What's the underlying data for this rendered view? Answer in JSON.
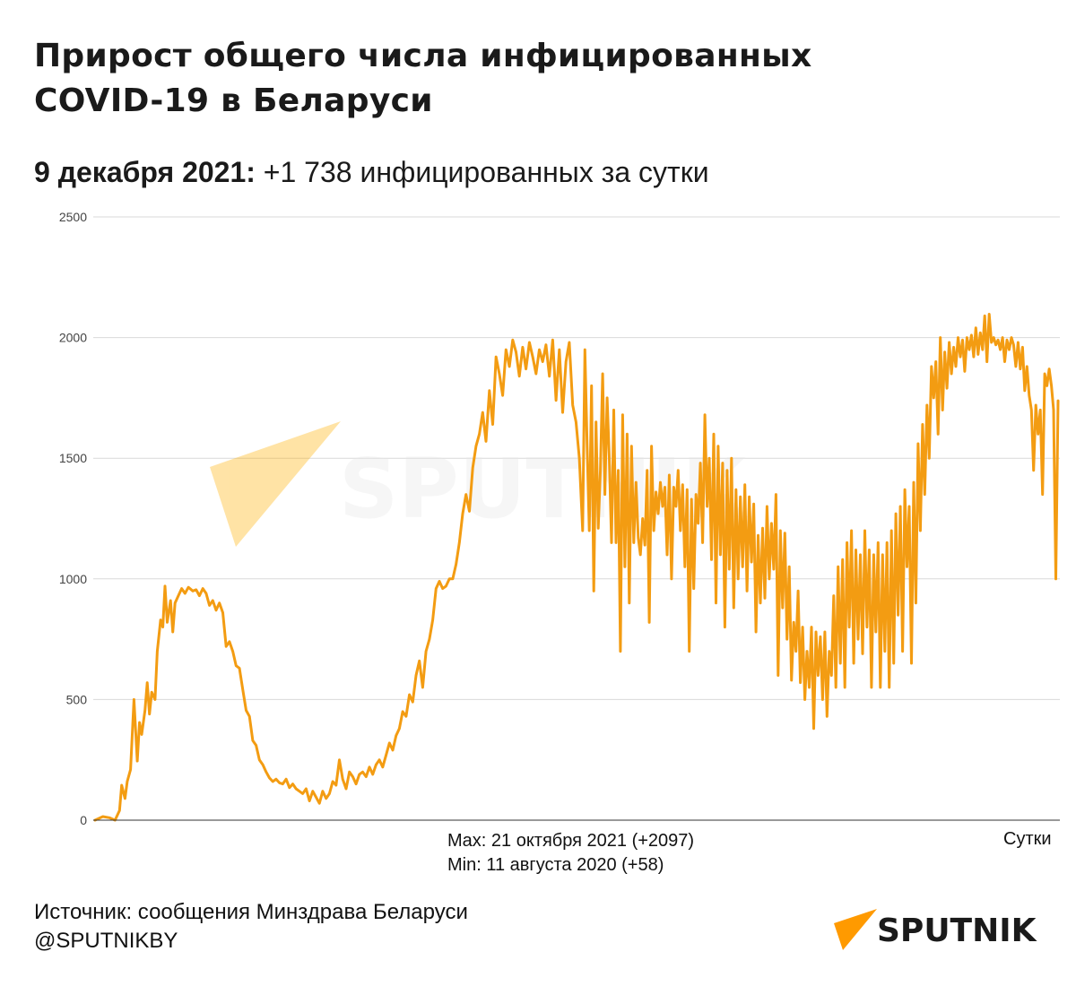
{
  "header": {
    "title_line1": "Прирост общего числа инфицированных",
    "title_line2": "COVID-19 в Беларуси",
    "subtitle_date": "9 декабря 2021:",
    "subtitle_value": " +1 738 инфицированных за сутки"
  },
  "notes": {
    "max": "Max: 21 октября 2021 (+2097)",
    "min": "Min: 11 августа 2020 (+58)"
  },
  "footer": {
    "source": "Источник: сообщения Минздрава Беларуси",
    "handle": "@SPUTNIKBY"
  },
  "brand": {
    "logo_text": "SPUTNIK",
    "watermark_text": "SPUTNIK",
    "accent": "#ff9a00"
  },
  "chart_data": {
    "type": "line",
    "title": "",
    "xlabel": "Сутки",
    "ylabel": "",
    "ylim": [
      0,
      2500
    ],
    "yticks": [
      0,
      500,
      1000,
      1500,
      2000,
      2500
    ],
    "grid": true,
    "line_color": "#f39c12",
    "series_shape": [
      [
        0,
        0
      ],
      [
        7,
        15
      ],
      [
        13,
        10
      ],
      [
        18,
        0
      ],
      [
        22,
        40
      ],
      [
        24,
        145
      ],
      [
        27,
        90
      ],
      [
        29,
        160
      ],
      [
        32,
        210
      ],
      [
        35,
        500
      ],
      [
        38,
        245
      ],
      [
        40,
        405
      ],
      [
        42,
        355
      ],
      [
        45,
        455
      ],
      [
        47,
        570
      ],
      [
        49,
        440
      ],
      [
        51,
        530
      ],
      [
        54,
        500
      ],
      [
        56,
        700
      ],
      [
        59,
        830
      ],
      [
        61,
        800
      ],
      [
        63,
        970
      ],
      [
        65,
        820
      ],
      [
        68,
        910
      ],
      [
        70,
        780
      ],
      [
        72,
        900
      ],
      [
        75,
        930
      ],
      [
        78,
        960
      ],
      [
        81,
        940
      ],
      [
        84,
        965
      ],
      [
        88,
        950
      ],
      [
        91,
        955
      ],
      [
        94,
        930
      ],
      [
        97,
        960
      ],
      [
        100,
        940
      ],
      [
        103,
        890
      ],
      [
        106,
        910
      ],
      [
        109,
        870
      ],
      [
        112,
        900
      ],
      [
        115,
        860
      ],
      [
        118,
        720
      ],
      [
        121,
        740
      ],
      [
        124,
        700
      ],
      [
        127,
        640
      ],
      [
        130,
        630
      ],
      [
        133,
        540
      ],
      [
        136,
        455
      ],
      [
        139,
        430
      ],
      [
        142,
        330
      ],
      [
        145,
        310
      ],
      [
        148,
        250
      ],
      [
        151,
        230
      ],
      [
        154,
        200
      ],
      [
        157,
        175
      ],
      [
        160,
        160
      ],
      [
        163,
        170
      ],
      [
        166,
        155
      ],
      [
        169,
        150
      ],
      [
        172,
        170
      ],
      [
        175,
        135
      ],
      [
        178,
        150
      ],
      [
        181,
        130
      ],
      [
        184,
        120
      ],
      [
        187,
        110
      ],
      [
        190,
        130
      ],
      [
        193,
        80
      ],
      [
        196,
        120
      ],
      [
        199,
        95
      ],
      [
        202,
        70
      ],
      [
        205,
        120
      ],
      [
        208,
        90
      ],
      [
        211,
        110
      ],
      [
        214,
        160
      ],
      [
        217,
        145
      ],
      [
        220,
        250
      ],
      [
        223,
        170
      ],
      [
        226,
        130
      ],
      [
        229,
        200
      ],
      [
        232,
        180
      ],
      [
        235,
        150
      ],
      [
        238,
        190
      ],
      [
        241,
        200
      ],
      [
        244,
        180
      ],
      [
        247,
        220
      ],
      [
        250,
        190
      ],
      [
        253,
        230
      ],
      [
        256,
        250
      ],
      [
        259,
        220
      ],
      [
        262,
        270
      ],
      [
        265,
        320
      ],
      [
        268,
        290
      ],
      [
        271,
        350
      ],
      [
        274,
        380
      ],
      [
        277,
        450
      ],
      [
        280,
        430
      ],
      [
        283,
        520
      ],
      [
        286,
        490
      ],
      [
        289,
        600
      ],
      [
        292,
        660
      ],
      [
        295,
        550
      ],
      [
        298,
        700
      ],
      [
        301,
        750
      ],
      [
        304,
        830
      ],
      [
        307,
        960
      ],
      [
        310,
        990
      ],
      [
        313,
        960
      ],
      [
        316,
        970
      ],
      [
        319,
        1000
      ],
      [
        322,
        1000
      ],
      [
        325,
        1060
      ],
      [
        328,
        1150
      ],
      [
        331,
        1270
      ],
      [
        334,
        1350
      ],
      [
        337,
        1280
      ],
      [
        340,
        1460
      ],
      [
        343,
        1550
      ],
      [
        346,
        1600
      ],
      [
        349,
        1690
      ],
      [
        352,
        1570
      ],
      [
        355,
        1780
      ],
      [
        358,
        1640
      ],
      [
        361,
        1920
      ],
      [
        364,
        1850
      ],
      [
        367,
        1760
      ],
      [
        370,
        1950
      ],
      [
        373,
        1880
      ],
      [
        376,
        1990
      ],
      [
        379,
        1940
      ],
      [
        382,
        1840
      ],
      [
        385,
        1960
      ],
      [
        388,
        1870
      ],
      [
        391,
        1980
      ],
      [
        394,
        1920
      ],
      [
        397,
        1850
      ],
      [
        400,
        1950
      ],
      [
        403,
        1900
      ],
      [
        406,
        1970
      ],
      [
        409,
        1840
      ],
      [
        412,
        1990
      ],
      [
        415,
        1740
      ],
      [
        418,
        1950
      ],
      [
        421,
        1690
      ],
      [
        424,
        1900
      ],
      [
        427,
        1980
      ],
      [
        430,
        1720
      ],
      [
        433,
        1650
      ],
      [
        436,
        1500
      ],
      [
        439,
        1200
      ],
      [
        441,
        1950
      ],
      [
        443,
        1550
      ],
      [
        445,
        1200
      ],
      [
        447,
        1800
      ],
      [
        449,
        950
      ],
      [
        451,
        1650
      ],
      [
        453,
        1210
      ],
      [
        455,
        1450
      ],
      [
        457,
        1850
      ],
      [
        459,
        1350
      ],
      [
        461,
        1750
      ],
      [
        463,
        1500
      ],
      [
        465,
        1150
      ],
      [
        467,
        1700
      ],
      [
        469,
        1150
      ],
      [
        471,
        1450
      ],
      [
        473,
        700
      ],
      [
        475,
        1680
      ],
      [
        477,
        1050
      ],
      [
        479,
        1600
      ],
      [
        481,
        900
      ],
      [
        483,
        1550
      ],
      [
        485,
        1150
      ],
      [
        487,
        1400
      ],
      [
        489,
        1170
      ],
      [
        491,
        1100
      ],
      [
        493,
        1250
      ],
      [
        495,
        1140
      ],
      [
        497,
        1450
      ],
      [
        499,
        820
      ],
      [
        501,
        1550
      ],
      [
        503,
        1200
      ],
      [
        505,
        1360
      ],
      [
        507,
        1270
      ],
      [
        509,
        1400
      ],
      [
        511,
        1300
      ],
      [
        513,
        1380
      ],
      [
        515,
        1100
      ],
      [
        517,
        1430
      ],
      [
        519,
        1000
      ],
      [
        521,
        1380
      ],
      [
        523,
        1300
      ],
      [
        525,
        1450
      ],
      [
        527,
        1200
      ],
      [
        529,
        1390
      ],
      [
        531,
        1050
      ],
      [
        533,
        1370
      ],
      [
        535,
        700
      ],
      [
        537,
        1330
      ],
      [
        539,
        960
      ],
      [
        541,
        1350
      ],
      [
        543,
        1230
      ],
      [
        545,
        1480
      ],
      [
        547,
        1150
      ],
      [
        549,
        1680
      ],
      [
        551,
        1300
      ],
      [
        553,
        1500
      ],
      [
        555,
        1080
      ],
      [
        557,
        1600
      ],
      [
        559,
        900
      ],
      [
        561,
        1550
      ],
      [
        563,
        1100
      ],
      [
        565,
        1480
      ],
      [
        567,
        800
      ],
      [
        569,
        1450
      ],
      [
        571,
        1040
      ],
      [
        573,
        1500
      ],
      [
        575,
        880
      ],
      [
        577,
        1370
      ],
      [
        579,
        1000
      ],
      [
        581,
        1340
      ],
      [
        583,
        1050
      ],
      [
        585,
        1390
      ],
      [
        587,
        950
      ],
      [
        589,
        1340
      ],
      [
        591,
        1070
      ],
      [
        593,
        1310
      ],
      [
        595,
        780
      ],
      [
        597,
        1180
      ],
      [
        599,
        900
      ],
      [
        601,
        1210
      ],
      [
        603,
        920
      ],
      [
        605,
        1300
      ],
      [
        607,
        1000
      ],
      [
        609,
        1230
      ],
      [
        611,
        1040
      ],
      [
        613,
        1350
      ],
      [
        615,
        600
      ],
      [
        617,
        1200
      ],
      [
        619,
        880
      ],
      [
        621,
        1190
      ],
      [
        623,
        750
      ],
      [
        625,
        1050
      ],
      [
        627,
        580
      ],
      [
        629,
        820
      ],
      [
        631,
        700
      ],
      [
        633,
        950
      ],
      [
        635,
        570
      ],
      [
        637,
        800
      ],
      [
        639,
        500
      ],
      [
        641,
        700
      ],
      [
        643,
        550
      ],
      [
        645,
        800
      ],
      [
        647,
        380
      ],
      [
        649,
        780
      ],
      [
        651,
        600
      ],
      [
        653,
        760
      ],
      [
        655,
        500
      ],
      [
        657,
        780
      ],
      [
        659,
        430
      ],
      [
        661,
        700
      ],
      [
        663,
        600
      ],
      [
        665,
        930
      ],
      [
        667,
        550
      ],
      [
        669,
        1050
      ],
      [
        671,
        650
      ],
      [
        673,
        1080
      ],
      [
        675,
        550
      ],
      [
        677,
        1150
      ],
      [
        679,
        800
      ],
      [
        681,
        1200
      ],
      [
        683,
        650
      ],
      [
        685,
        1120
      ],
      [
        687,
        750
      ],
      [
        689,
        1100
      ],
      [
        691,
        690
      ],
      [
        693,
        1200
      ],
      [
        695,
        800
      ],
      [
        697,
        1120
      ],
      [
        699,
        550
      ],
      [
        701,
        1100
      ],
      [
        703,
        780
      ],
      [
        705,
        1150
      ],
      [
        707,
        550
      ],
      [
        709,
        1100
      ],
      [
        711,
        700
      ],
      [
        713,
        1150
      ],
      [
        715,
        550
      ],
      [
        717,
        1200
      ],
      [
        719,
        650
      ],
      [
        721,
        1270
      ],
      [
        723,
        850
      ],
      [
        725,
        1300
      ],
      [
        727,
        700
      ],
      [
        729,
        1370
      ],
      [
        731,
        1050
      ],
      [
        733,
        1300
      ],
      [
        735,
        650
      ],
      [
        737,
        1400
      ],
      [
        739,
        900
      ],
      [
        741,
        1560
      ],
      [
        743,
        1200
      ],
      [
        745,
        1640
      ],
      [
        747,
        1350
      ],
      [
        749,
        1720
      ],
      [
        751,
        1500
      ],
      [
        753,
        1880
      ],
      [
        755,
        1750
      ],
      [
        757,
        1900
      ],
      [
        759,
        1600
      ],
      [
        761,
        2000
      ],
      [
        763,
        1700
      ],
      [
        765,
        1940
      ],
      [
        767,
        1790
      ],
      [
        769,
        1980
      ],
      [
        771,
        1850
      ],
      [
        773,
        1960
      ],
      [
        775,
        1880
      ],
      [
        777,
        2000
      ],
      [
        779,
        1920
      ],
      [
        781,
        1990
      ],
      [
        783,
        1860
      ],
      [
        785,
        2000
      ],
      [
        787,
        1950
      ],
      [
        789,
        2010
      ],
      [
        791,
        1920
      ],
      [
        793,
        2040
      ],
      [
        795,
        1930
      ],
      [
        797,
        2020
      ],
      [
        799,
        1950
      ],
      [
        801,
        2090
      ],
      [
        803,
        1900
      ],
      [
        805,
        2097
      ],
      [
        807,
        1980
      ],
      [
        809,
        2000
      ],
      [
        811,
        1970
      ],
      [
        813,
        1990
      ],
      [
        815,
        1950
      ],
      [
        817,
        2000
      ],
      [
        819,
        1900
      ],
      [
        821,
        1990
      ],
      [
        823,
        1950
      ],
      [
        825,
        2000
      ],
      [
        827,
        1970
      ],
      [
        829,
        1880
      ],
      [
        831,
        1980
      ],
      [
        833,
        1870
      ],
      [
        835,
        1960
      ],
      [
        837,
        1780
      ],
      [
        839,
        1880
      ],
      [
        841,
        1760
      ],
      [
        843,
        1700
      ],
      [
        845,
        1450
      ],
      [
        847,
        1720
      ],
      [
        849,
        1600
      ],
      [
        851,
        1700
      ],
      [
        853,
        1350
      ],
      [
        855,
        1850
      ],
      [
        857,
        1800
      ],
      [
        859,
        1870
      ],
      [
        861,
        1800
      ],
      [
        863,
        1700
      ],
      [
        865,
        1000
      ],
      [
        867,
        1738
      ]
    ]
  }
}
